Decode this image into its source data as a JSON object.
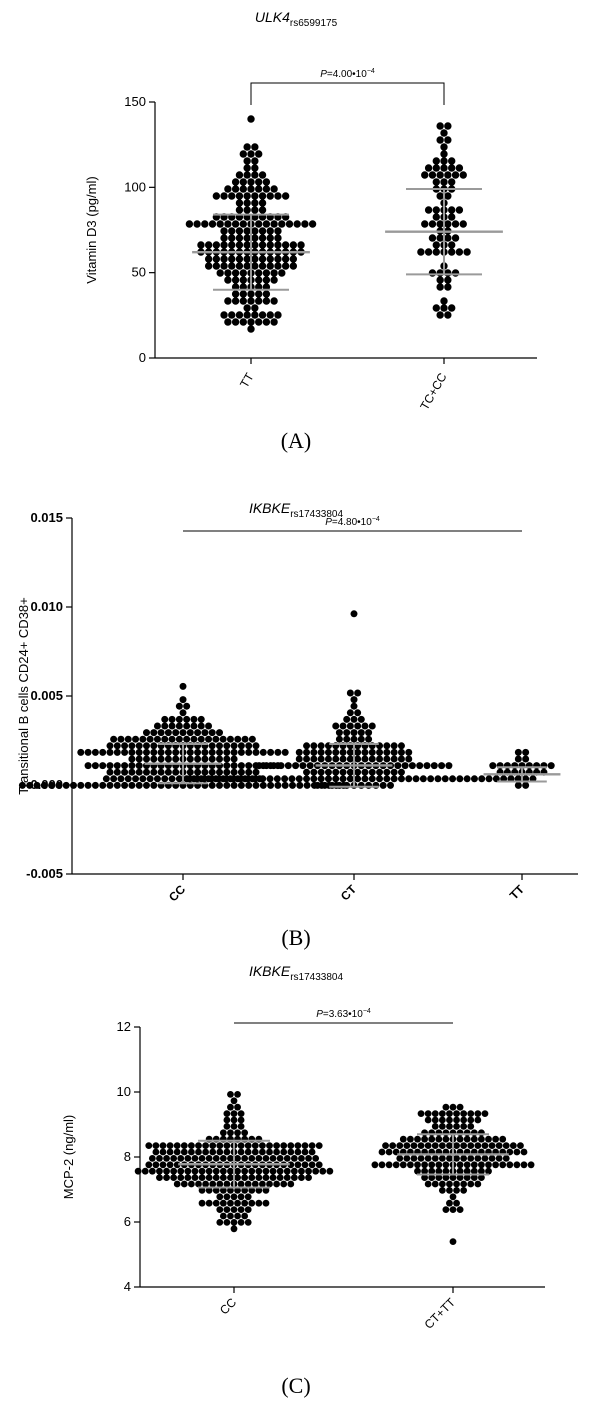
{
  "chart_data": [
    {
      "panel": "(A)",
      "type": "scatter",
      "title_gene": "ULK4",
      "title_snp": "rs6599175",
      "ylabel": "Vitamin D3 (pg/ml)",
      "ylim": [
        0,
        150
      ],
      "yticks": [
        0,
        50,
        100,
        150
      ],
      "categories": [
        "TT",
        "TC+CC"
      ],
      "pvalue": {
        "prefix": "P",
        "text": "=4.00•10",
        "exp": "−4",
        "between": [
          0,
          1
        ]
      },
      "groups": [
        {
          "name": "TT",
          "n": 190,
          "min": 18,
          "max": 142,
          "mean": 62,
          "sd": 22,
          "extremes": [
            142,
            123,
            123,
            120,
            117,
            114,
            110,
            107,
            105,
            104,
            103,
            101,
            100,
            100,
            98,
            96,
            95,
            93,
            18,
            20,
            22,
            24,
            25,
            27
          ]
        },
        {
          "name": "TC+CC",
          "n": 75,
          "min": 26,
          "max": 136,
          "mean": 74,
          "sd": 25,
          "extremes": [
            136,
            132,
            127,
            122,
            119,
            117,
            114,
            110,
            108,
            105,
            102,
            26,
            28,
            30,
            32
          ]
        }
      ]
    },
    {
      "panel": "(B)",
      "type": "scatter",
      "title_gene": "IKBKE",
      "title_snp": "rs17433804",
      "ylabel": "Transitional B cells CD24+ CD38+",
      "ylim": [
        -0.005,
        0.015
      ],
      "yticks": [
        -0.005,
        0.0,
        0.005,
        0.01,
        0.015
      ],
      "ytick_labels": [
        "-0.005",
        "0.000",
        "0.005",
        "0.010",
        "0.015"
      ],
      "categories": [
        "CC",
        "CT",
        "TT"
      ],
      "pvalue": {
        "prefix": "P",
        "text": "=4.80•10",
        "exp": "−4",
        "between": [
          0,
          2
        ]
      },
      "groups": [
        {
          "name": "CC",
          "n": 230,
          "min": 0.0,
          "max": 0.0057,
          "mean": 0.0012,
          "sd": 0.0011,
          "extremes": [
            0.0057,
            0.0047,
            0.0045,
            0.0043,
            0.004,
            0.0038,
            0.0036,
            0.0034,
            0.0032,
            0.003,
            0.0029,
            0.0028
          ]
        },
        {
          "name": "CT",
          "n": 170,
          "min": 0.0001,
          "max": 0.0096,
          "mean": 0.0011,
          "sd": 0.0012,
          "extremes": [
            0.0096,
            0.0051,
            0.0051,
            0.0049,
            0.0037,
            0.0036,
            0.0026,
            0.0025
          ]
        },
        {
          "name": "TT",
          "n": 26,
          "min": 0.0001,
          "max": 0.0017,
          "mean": 0.0006,
          "sd": 0.0004,
          "extremes": [
            0.0017,
            0.0014,
            0.0013,
            0.0012
          ]
        }
      ]
    },
    {
      "panel": "(C)",
      "type": "scatter",
      "title_gene": "IKBKE",
      "title_snp": "rs17433804",
      "ylabel": "MCP-2 (ng/ml)",
      "ylim": [
        4,
        12
      ],
      "yticks": [
        4,
        6,
        8,
        10,
        12
      ],
      "categories": [
        "CC",
        "CT+TT"
      ],
      "pvalue": {
        "prefix": "P",
        "text": "=3.63•10",
        "exp": "−4",
        "between": [
          0,
          1
        ]
      },
      "groups": [
        {
          "name": "CC",
          "n": 230,
          "min": 5.85,
          "max": 9.9,
          "mean": 7.78,
          "sd": 0.72,
          "extremes": [
            9.9,
            9.6,
            9.4,
            9.2,
            9.1,
            9.0,
            5.85,
            5.9,
            5.95,
            6.0,
            6.1,
            6.2
          ]
        },
        {
          "name": "CT+TT",
          "n": 170,
          "min": 5.45,
          "max": 9.5,
          "mean": 8.08,
          "sd": 0.62,
          "extremes": [
            9.5,
            9.4,
            9.3,
            9.2,
            5.45,
            6.3,
            6.4,
            6.5,
            6.6
          ]
        }
      ]
    }
  ]
}
